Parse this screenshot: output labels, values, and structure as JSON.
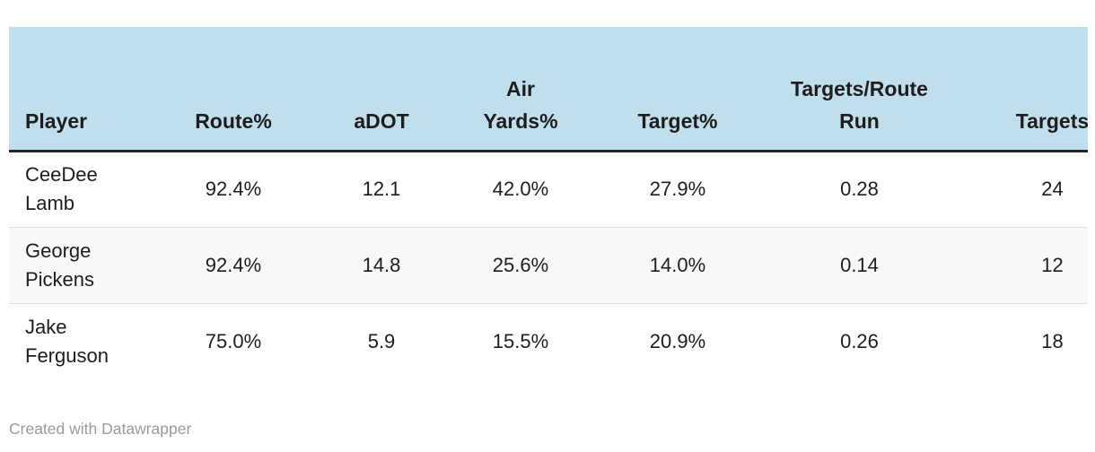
{
  "chart_data": {
    "type": "table",
    "columns": [
      "Player",
      "Route%",
      "aDOT",
      "Air\nYards%",
      "Target%",
      "Targets/Route\nRun",
      "Targets"
    ],
    "rows": [
      [
        "CeeDee\nLamb",
        "92.4%",
        "12.1",
        "42.0%",
        "27.9%",
        "0.28",
        "24"
      ],
      [
        "George\nPickens",
        "92.4%",
        "14.8",
        "25.6%",
        "14.0%",
        "0.14",
        "12"
      ],
      [
        "Jake\nFerguson",
        "75.0%",
        "5.9",
        "15.5%",
        "20.9%",
        "0.26",
        "18"
      ]
    ],
    "layout_hints": {
      "header_align": "center",
      "first_column_align": "left",
      "numeric_align": "center",
      "last_column_clipped_at_right_edge": true,
      "grid": "horizontal-row-dividers-only"
    }
  },
  "footer": {
    "credit": "Created with Datawrapper"
  },
  "colors": {
    "header_bg": "#c1deec",
    "header_border": "#262626",
    "body_text": "#1d1d1d",
    "row_alt_bg": "#f8f8f8",
    "row_border": "#dedede",
    "footer_text": "#9a9a9a"
  }
}
